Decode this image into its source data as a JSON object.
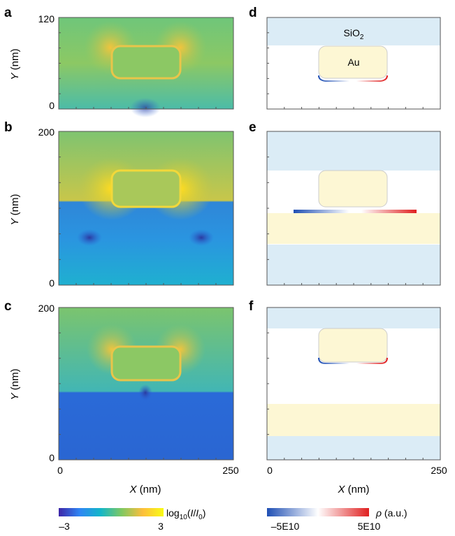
{
  "panels": [
    {
      "letter": "a",
      "y_max": "120",
      "y_min": "0"
    },
    {
      "letter": "b",
      "y_max": "200",
      "y_min": "0"
    },
    {
      "letter": "c",
      "y_max": "200",
      "y_min": "0"
    },
    {
      "letter": "d",
      "label_sio2": "SiO",
      "label_sio2_sub": "2",
      "label_au": "Au"
    },
    {
      "letter": "e"
    },
    {
      "letter": "f"
    }
  ],
  "axes": {
    "y_label_italic": "Y",
    "y_label_unit": " (nm)",
    "x_label_italic": "X",
    "x_label_unit": " (nm)",
    "x_min": "0",
    "x_max": "250"
  },
  "colorbar_left": {
    "label_prefix": "log",
    "label_sub": "10",
    "label_open": "(",
    "label_I": "I",
    "label_slash": "/",
    "label_I0": "I",
    "label_I0_sub": "0",
    "label_close": ")",
    "min": "–3",
    "max": "3",
    "colors": [
      "#3e26a8",
      "#2f86f4",
      "#13b6c8",
      "#7fc862",
      "#fcbe3c",
      "#f9fb15"
    ]
  },
  "colorbar_right": {
    "label_rho": "ρ",
    "label_unit": " (a.u.)",
    "min": "–5E10",
    "max": "5E10",
    "colors": [
      "#1f4fb4",
      "#ffffff",
      "#e02020"
    ]
  },
  "material_colors": {
    "sio2": "#dbecf6",
    "au": "#fdf7d4",
    "air": "#ffffff"
  }
}
